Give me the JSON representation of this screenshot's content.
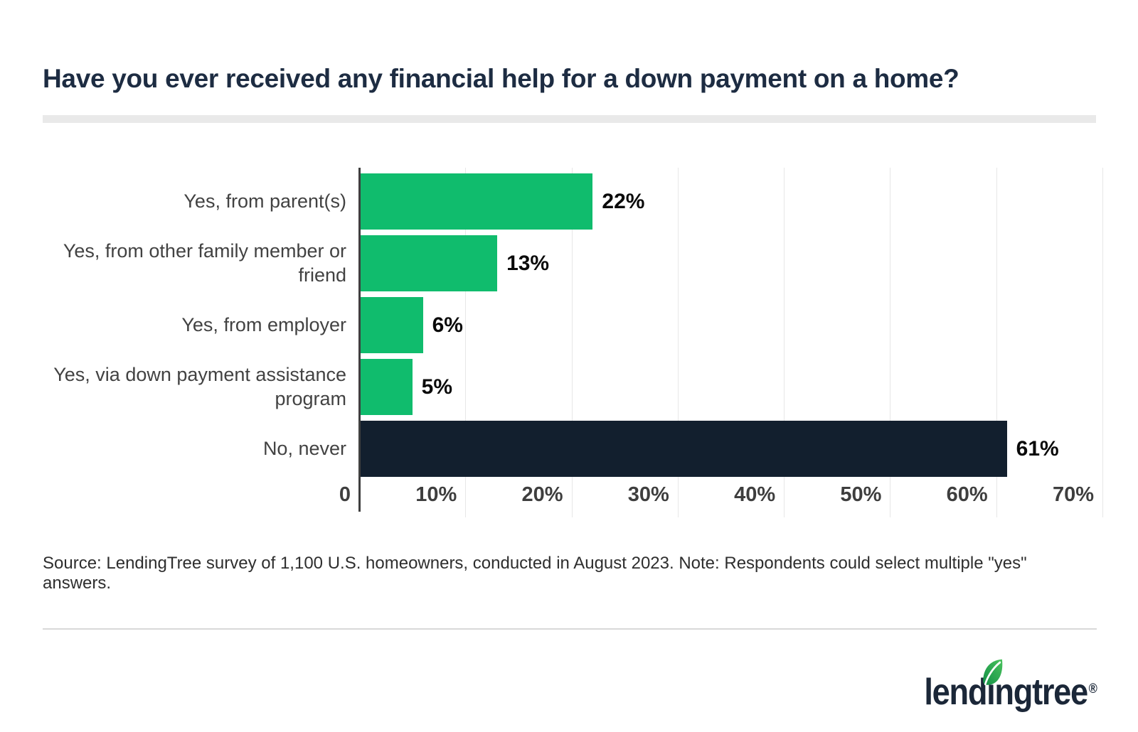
{
  "header": {
    "title": "Have you ever received any financial help for a down payment on a home?"
  },
  "chart_data": {
    "type": "bar",
    "orientation": "horizontal",
    "title": "Have you ever received any financial help for a down payment on a home?",
    "categories": [
      "Yes, from parent(s)",
      "Yes, from other family member or friend",
      "Yes, from employer",
      "Yes, via down payment assistance program",
      "No, never"
    ],
    "values": [
      22,
      13,
      6,
      5,
      61
    ],
    "value_labels": [
      "22%",
      "13%",
      "6%",
      "5%",
      "61%"
    ],
    "xlabel": "",
    "ylabel": "",
    "xlim": [
      0,
      70
    ],
    "x_ticks": [
      "0",
      "10%",
      "20%",
      "30%",
      "40%",
      "50%",
      "60%",
      "70%"
    ],
    "grid": "vertical-gridlines-on",
    "legend": "none",
    "bar_colors": [
      "#10bc6d",
      "#10bc6d",
      "#10bc6d",
      "#10bc6d",
      "#121f2e"
    ],
    "colors": {
      "green": "#10bc6d",
      "dark_navy": "#121f2e",
      "gridline": "#e7e7e7",
      "axis_line": "#3f3f3f"
    }
  },
  "source_note": "Source: LendingTree survey of 1,100 U.S. homeowners, conducted in August 2023. Note: Respondents could select multiple \"yes\" answers.",
  "footer": {
    "brand": "lendingtree",
    "brand_parts": {
      "pre": "lend",
      "i": "ı",
      "post": "ngtree"
    },
    "registered_mark": "®",
    "brand_navy": "#1b2738",
    "leaf_green_dark": "#128f46",
    "leaf_green_light": "#4ac25d"
  }
}
